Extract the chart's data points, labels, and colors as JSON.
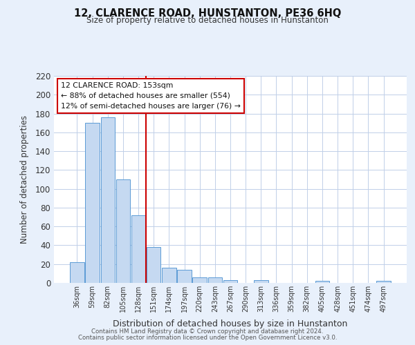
{
  "title": "12, CLARENCE ROAD, HUNSTANTON, PE36 6HQ",
  "subtitle": "Size of property relative to detached houses in Hunstanton",
  "xlabel": "Distribution of detached houses by size in Hunstanton",
  "ylabel": "Number of detached properties",
  "bin_labels": [
    "36sqm",
    "59sqm",
    "82sqm",
    "105sqm",
    "128sqm",
    "151sqm",
    "174sqm",
    "197sqm",
    "220sqm",
    "243sqm",
    "267sqm",
    "290sqm",
    "313sqm",
    "336sqm",
    "359sqm",
    "382sqm",
    "405sqm",
    "428sqm",
    "451sqm",
    "474sqm",
    "497sqm"
  ],
  "bar_values": [
    22,
    170,
    176,
    110,
    72,
    38,
    16,
    14,
    6,
    6,
    3,
    0,
    3,
    0,
    0,
    0,
    2,
    0,
    0,
    0,
    2
  ],
  "bar_color": "#c5d9f1",
  "bar_edgecolor": "#5b9bd5",
  "vline_color": "#cc0000",
  "annotation_title": "12 CLARENCE ROAD: 153sqm",
  "annotation_line1": "← 88% of detached houses are smaller (554)",
  "annotation_line2": "12% of semi-detached houses are larger (76) →",
  "annotation_box_color": "#ffffff",
  "annotation_box_edgecolor": "#cc0000",
  "ylim": [
    0,
    220
  ],
  "yticks": [
    0,
    20,
    40,
    60,
    80,
    100,
    120,
    140,
    160,
    180,
    200,
    220
  ],
  "footer1": "Contains HM Land Registry data © Crown copyright and database right 2024.",
  "footer2": "Contains public sector information licensed under the Open Government Licence v3.0.",
  "background_color": "#e8f0fb",
  "plot_background": "#ffffff",
  "grid_color": "#c0cfe8"
}
